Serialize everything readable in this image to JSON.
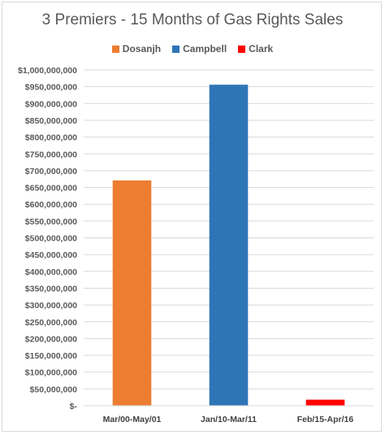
{
  "chart_data": {
    "type": "bar",
    "title": "3 Premiers - 15 Months of Gas Rights Sales",
    "legend_position": "top",
    "categories": [
      "Mar/00-May/01",
      "Jan/10-Mar/11",
      "Feb/15-Apr/16"
    ],
    "series": [
      {
        "name": "Dosanjh",
        "color": "#ed7d31"
      },
      {
        "name": "Campbell",
        "color": "#2e75b6"
      },
      {
        "name": "Clark",
        "color": "#ff0000"
      }
    ],
    "values": [
      671000000,
      956000000,
      18000000
    ],
    "bar_colors": [
      "#ed7d31",
      "#2e75b6",
      "#ff0000"
    ],
    "ylim": [
      0,
      1000000000
    ],
    "ytick_step": 50000000,
    "ytick_labels": [
      "$-",
      "$50,000,000",
      "$100,000,000",
      "$150,000,000",
      "$200,000,000",
      "$250,000,000",
      "$300,000,000",
      "$350,000,000",
      "$400,000,000",
      "$450,000,000",
      "$500,000,000",
      "$550,000,000",
      "$600,000,000",
      "$650,000,000",
      "$700,000,000",
      "$750,000,000",
      "$800,000,000",
      "$850,000,000",
      "$900,000,000",
      "$950,000,000",
      "$1,000,000,000"
    ],
    "grid": true
  }
}
